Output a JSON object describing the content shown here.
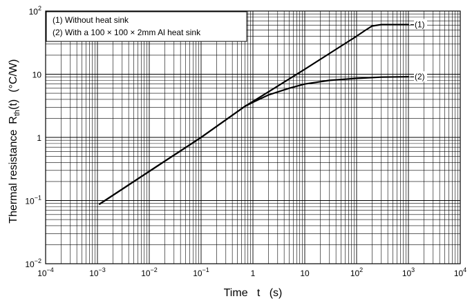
{
  "chart_data": {
    "type": "line",
    "xscale": "log",
    "yscale": "log",
    "xlim": [
      0.0001,
      10000
    ],
    "ylim": [
      0.01,
      100
    ],
    "grid": true,
    "xlabel": "Time   t   (s)",
    "ylabel": "Thermal resistance",
    "ylabel_symbol": "R",
    "ylabel_subscript": "th",
    "ylabel_arg": "(t)",
    "ylabel_unit": "(°C/W)",
    "x_tick_labels": [
      {
        "value": 0.0001,
        "base": "10",
        "exp": "−4"
      },
      {
        "value": 0.001,
        "base": "10",
        "exp": "−3"
      },
      {
        "value": 0.01,
        "base": "10",
        "exp": "−2"
      },
      {
        "value": 0.1,
        "base": "10",
        "exp": "−1"
      },
      {
        "value": 1,
        "base": "1",
        "exp": ""
      },
      {
        "value": 10,
        "base": "10",
        "exp": ""
      },
      {
        "value": 100,
        "base": "10",
        "exp": "2"
      },
      {
        "value": 1000,
        "base": "10",
        "exp": "3"
      },
      {
        "value": 10000,
        "base": "10",
        "exp": "4"
      }
    ],
    "y_tick_labels": [
      {
        "value": 0.01,
        "base": "10",
        "exp": "−2"
      },
      {
        "value": 0.1,
        "base": "10",
        "exp": "−1"
      },
      {
        "value": 1,
        "base": "1",
        "exp": ""
      },
      {
        "value": 10,
        "base": "10",
        "exp": ""
      },
      {
        "value": 100,
        "base": "10",
        "exp": "2"
      }
    ],
    "legend_position": "top-left",
    "legend": [
      "(1) Without heat sink",
      "(2) With a 100 × 100 × 2mm Al heat sink"
    ],
    "series": [
      {
        "name": "(1)",
        "x": [
          0.0011,
          0.01,
          0.1,
          0.7,
          1,
          10,
          100,
          150,
          200,
          300,
          1000
        ],
        "y": [
          0.088,
          0.29,
          1.0,
          3.1,
          3.7,
          12,
          40,
          50,
          58,
          61,
          61
        ]
      },
      {
        "name": "(2)",
        "x": [
          0.0011,
          0.01,
          0.1,
          0.7,
          1,
          2,
          5,
          10,
          30,
          100,
          300,
          1000
        ],
        "y": [
          0.088,
          0.29,
          1.0,
          3.1,
          3.6,
          4.7,
          6.0,
          7.0,
          8.0,
          8.6,
          9.0,
          9.1
        ]
      }
    ]
  }
}
